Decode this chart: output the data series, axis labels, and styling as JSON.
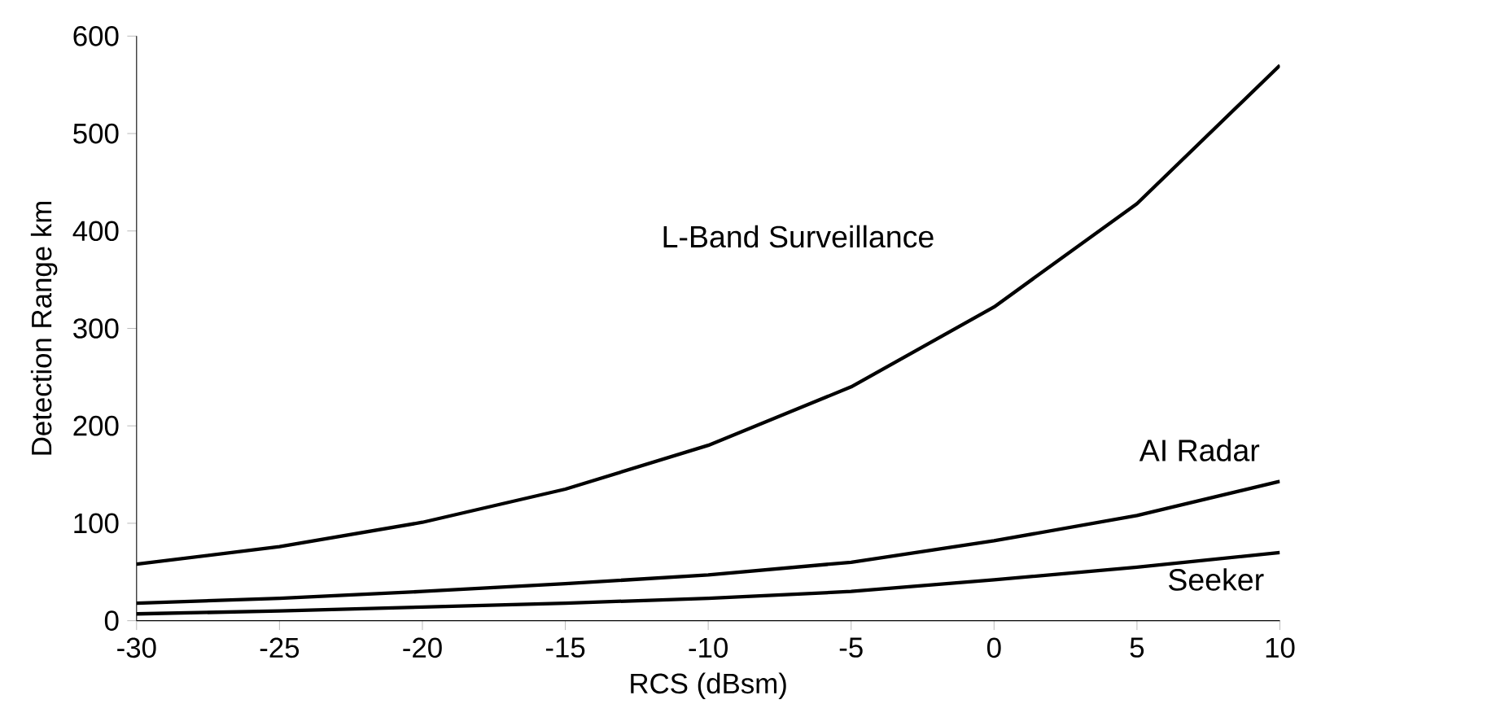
{
  "chart_data": {
    "type": "line",
    "xlabel": "RCS (dBsm)",
    "ylabel": "Detection Range km",
    "x": [
      -30,
      -25,
      -20,
      -15,
      -10,
      -5,
      0,
      5,
      10
    ],
    "series": [
      {
        "name": "L-Band Surveillance",
        "color": "#000000",
        "values": [
          58,
          76,
          101,
          135,
          180,
          240,
          322,
          428,
          570
        ]
      },
      {
        "name": "AI Radar",
        "color": "#000000",
        "values": [
          18,
          23,
          30,
          38,
          47,
          60,
          82,
          108,
          143
        ]
      },
      {
        "name": "Seeker",
        "color": "#000000",
        "values": [
          7,
          10,
          14,
          18,
          23,
          30,
          42,
          55,
          70
        ]
      }
    ],
    "xlim": [
      -30,
      10
    ],
    "ylim": [
      0,
      600
    ],
    "xticks": [
      -30,
      -25,
      -20,
      -15,
      -10,
      -5,
      0,
      5,
      10
    ],
    "yticks": [
      0,
      100,
      200,
      300,
      400,
      500,
      600
    ],
    "grid": false,
    "marker": "none",
    "line_style": "solid"
  }
}
